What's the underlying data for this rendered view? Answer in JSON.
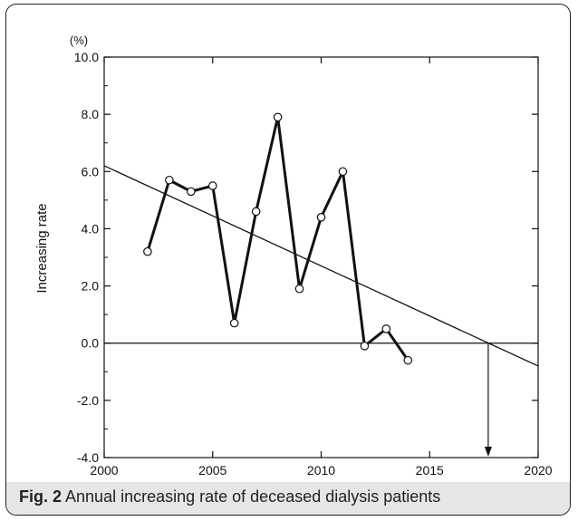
{
  "chart_data": {
    "type": "line",
    "unit_label": "(%)",
    "ylabel": "Increasing rate",
    "xlabel": "",
    "xlim": [
      2000,
      2020
    ],
    "ylim": [
      -4.0,
      10.0
    ],
    "x_ticks": [
      2000,
      2005,
      2010,
      2015,
      2020
    ],
    "y_ticks": [
      "10.0",
      "8.0",
      "6.0",
      "4.0",
      "2.0",
      "0.0",
      "-2.0",
      "-4.0"
    ],
    "series": [
      {
        "x": [
          2002,
          2003,
          2004,
          2005,
          2006,
          2007,
          2008,
          2009,
          2010,
          2011,
          2012,
          2013,
          2014
        ],
        "values": [
          3.2,
          5.7,
          5.3,
          5.5,
          0.7,
          4.6,
          7.9,
          1.9,
          4.4,
          6.0,
          -0.1,
          0.5,
          -0.6
        ]
      }
    ],
    "trend_line": {
      "x": [
        2000,
        2020
      ],
      "values": [
        6.2,
        -0.8
      ],
      "zero_crossing_year": 2017.7
    },
    "reference_line_y": 0.0,
    "grid": false,
    "legend": "none"
  },
  "caption": {
    "label": "Fig. 2",
    "text": "Annual increasing rate of deceased dialysis patients"
  },
  "colors": {
    "line": "#111111",
    "caption_bg": "#e6e6e6"
  }
}
